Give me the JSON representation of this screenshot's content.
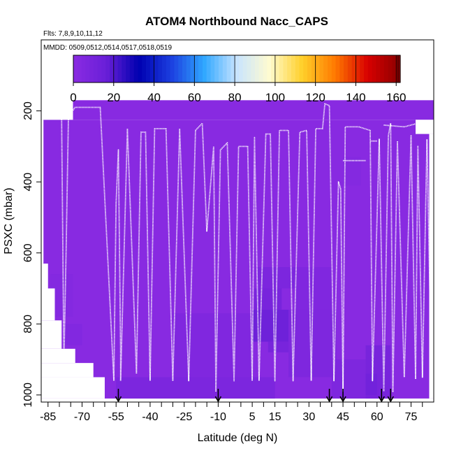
{
  "chart_data": {
    "type": "heatmap",
    "title": "ATOM4 Northbound Nacc_CAPS",
    "flights_label": "Flts: 7,8,9,10,11,12",
    "dates_label": "MMDD: 0509,0512,0514,0517,0518,0519",
    "xlabel": "Latitude (deg N)",
    "ylabel": "PSXC (mbar)",
    "xlim": [
      -88,
      85
    ],
    "ylim": [
      1020,
      0
    ],
    "x_ticks": [
      -85,
      -70,
      -55,
      -40,
      -25,
      -10,
      5,
      15,
      30,
      45,
      60,
      75
    ],
    "x_ticks_unlabeled": [
      -80,
      -75,
      -65,
      -60,
      -50,
      -45,
      -35,
      -30,
      -20,
      -15,
      -5,
      0,
      10,
      20,
      25,
      35,
      40,
      50,
      55,
      65,
      70,
      80
    ],
    "y_ticks": [
      200,
      400,
      600,
      800,
      1000
    ],
    "colorbar": {
      "ticks": [
        0,
        20,
        40,
        60,
        80,
        100,
        120,
        140,
        160
      ],
      "vmin": 0,
      "vmax": 162,
      "colors": [
        "#8a2be2",
        "#6a1fd8",
        "#0000b0",
        "#1c3fe0",
        "#2fa7ff",
        "#c8e4ff",
        "#fffbd0",
        "#ffd02a",
        "#ff7a00",
        "#d80000",
        "#8b0000"
      ]
    },
    "background_value": 1,
    "cells": [
      {
        "lat": [
          -74,
          86
        ],
        "p": [
          170,
          225
        ],
        "v": 1
      },
      {
        "lat": [
          -88,
          86
        ],
        "p": [
          225,
          1010
        ],
        "v": 1
      },
      {
        "lat": [
          24,
          40
        ],
        "p": [
          640,
          760
        ],
        "v": 5
      },
      {
        "lat": [
          7,
          24
        ],
        "p": [
          640,
          700
        ],
        "v": 7
      },
      {
        "lat": [
          6,
          18
        ],
        "p": [
          700,
          760
        ],
        "v": 9
      },
      {
        "lat": [
          5,
          21
        ],
        "p": [
          760,
          850
        ],
        "v": 14
      },
      {
        "lat": [
          12,
          24
        ],
        "p": [
          850,
          880
        ],
        "v": 9
      },
      {
        "lat": [
          21,
          42
        ],
        "p": [
          760,
          950
        ],
        "v": 6
      },
      {
        "lat": [
          -30,
          5
        ],
        "p": [
          770,
          960
        ],
        "v": 5
      },
      {
        "lat": [
          -55,
          15
        ],
        "p": [
          950,
          1010
        ],
        "v": 7
      },
      {
        "lat": [
          40,
          57
        ],
        "p": [
          900,
          1010
        ],
        "v": 6
      },
      {
        "lat": [
          55,
          66
        ],
        "p": [
          860,
          1010
        ],
        "v": 9
      },
      {
        "lat": [
          55,
          60
        ],
        "p": [
          940,
          1000
        ],
        "v": 12
      },
      {
        "lat": [
          45,
          53
        ],
        "p": [
          330,
          410
        ],
        "v": 3
      },
      {
        "lat": [
          -78,
          -70
        ],
        "p": [
          800,
          860
        ],
        "v": 4
      },
      {
        "lat": [
          -84,
          -74
        ],
        "p": [
          660,
          780
        ],
        "v": 3
      }
    ],
    "missing_regions": [
      {
        "lat": [
          -88,
          -74
        ],
        "p": [
          170,
          225
        ]
      },
      {
        "lat": [
          -88,
          -87
        ],
        "p": [
          225,
          630
        ]
      },
      {
        "lat": [
          -88,
          -85
        ],
        "p": [
          630,
          700
        ]
      },
      {
        "lat": [
          -88,
          -82
        ],
        "p": [
          700,
          790
        ]
      },
      {
        "lat": [
          -88,
          -79
        ],
        "p": [
          790,
          870
        ]
      },
      {
        "lat": [
          -88,
          -73
        ],
        "p": [
          870,
          910
        ]
      },
      {
        "lat": [
          -88,
          -65
        ],
        "p": [
          910,
          950
        ]
      },
      {
        "lat": [
          -88,
          -60
        ],
        "p": [
          950,
          1010
        ]
      },
      {
        "lat": [
          77,
          86
        ],
        "p": [
          225,
          265
        ]
      },
      {
        "lat": [
          83,
          86
        ],
        "p": [
          265,
          1010
        ]
      }
    ],
    "flight_tracks": [
      {
        "name": "dive-1",
        "points": [
          [
            -84,
            215
          ],
          [
            -79,
            215
          ],
          [
            -78,
            910
          ],
          [
            -77,
            590
          ],
          [
            -76,
            215
          ],
          [
            -73,
            190
          ],
          [
            -62,
            190
          ],
          [
            -56,
            960
          ],
          [
            -55,
            460
          ],
          [
            -54,
            310
          ],
          [
            -53,
            880
          ],
          [
            -53,
            960
          ]
        ]
      },
      {
        "name": "dive-2",
        "points": [
          [
            -53,
            960
          ],
          [
            -50,
            250
          ],
          [
            -46,
            940
          ],
          [
            -44,
            260
          ],
          [
            -42,
            260
          ],
          [
            -40,
            960
          ],
          [
            -38,
            250
          ],
          [
            -33,
            250
          ],
          [
            -30,
            960
          ]
        ]
      },
      {
        "name": "dive-3",
        "points": [
          [
            -30,
            960
          ],
          [
            -27,
            250
          ],
          [
            -23,
            960
          ],
          [
            -20,
            255
          ],
          [
            -17,
            235
          ],
          [
            -15,
            540
          ],
          [
            -12,
            300
          ],
          [
            -11,
            990
          ]
        ]
      },
      {
        "name": "dive-4",
        "points": [
          [
            -11,
            990
          ],
          [
            -9,
            310
          ],
          [
            -6,
            290
          ],
          [
            -3,
            960
          ],
          [
            -1,
            300
          ],
          [
            3,
            300
          ],
          [
            5,
            960
          ],
          [
            6,
            275
          ],
          [
            8,
            960
          ],
          [
            11,
            265
          ],
          [
            13,
            265
          ],
          [
            15,
            960
          ],
          [
            17,
            255
          ],
          [
            21,
            255
          ],
          [
            23,
            960
          ],
          [
            26,
            260
          ],
          [
            29,
            255
          ],
          [
            31,
            960
          ]
        ]
      },
      {
        "name": "dive-5",
        "points": [
          [
            31,
            960
          ],
          [
            33,
            250
          ],
          [
            36,
            250
          ],
          [
            37,
            180
          ],
          [
            39,
            185
          ],
          [
            41,
            960
          ],
          [
            43,
            400
          ],
          [
            44,
            420
          ],
          [
            45,
            990
          ],
          [
            46,
            245
          ],
          [
            52,
            245
          ],
          [
            57,
            255
          ],
          [
            58,
            960
          ],
          [
            61,
            280
          ],
          [
            63,
            990
          ],
          [
            65,
            270
          ],
          [
            66,
            235
          ],
          [
            67,
            990
          ],
          [
            69,
            285
          ],
          [
            72,
            950
          ],
          [
            75,
            270
          ],
          [
            77,
            955
          ],
          [
            78,
            300
          ],
          [
            80,
            950
          ],
          [
            82,
            280
          ],
          [
            84,
            960
          ]
        ]
      },
      {
        "name": "step-line-a",
        "points": [
          [
            45,
            340
          ],
          [
            55,
            340
          ]
        ]
      },
      {
        "name": "step-line-b",
        "points": [
          [
            63,
            240
          ],
          [
            72,
            245
          ],
          [
            78,
            235
          ]
        ]
      },
      {
        "name": "step-line-c",
        "points": [
          [
            57,
            285
          ],
          [
            60,
            285
          ]
        ]
      }
    ],
    "sonde_markers": [
      -54,
      -10,
      39,
      45,
      62,
      66
    ],
    "annotations": []
  }
}
